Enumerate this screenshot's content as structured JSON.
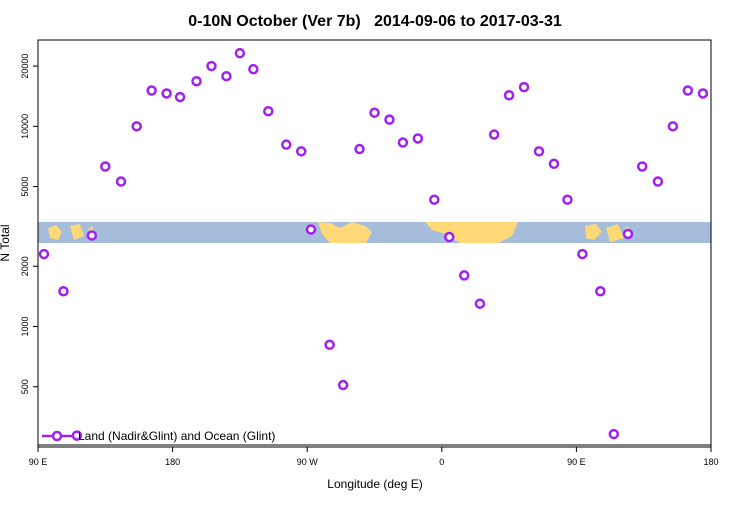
{
  "chart_data": {
    "type": "scatter",
    "title": "0-10N October (Ver 7b)   2014-09-06 to 2017-03-31",
    "x_label": "Longitude (deg E)",
    "y_label": "N Total",
    "x": [
      94,
      107,
      116,
      126,
      135,
      145.5,
      156,
      166,
      176,
      185,
      196,
      206,
      216,
      225,
      234,
      244,
      256,
      266,
      272.5,
      285,
      294,
      305,
      315,
      325,
      334,
      344,
      355,
      365,
      375,
      385.5,
      395,
      405,
      415,
      425,
      435,
      444,
      454,
      466,
      475,
      484.5,
      494,
      504.5,
      514.5,
      524.5,
      534.6
    ],
    "series": [
      {
        "name": "Land (Nadir&Glint) and Ocean (Glint)",
        "color": "#a020f0",
        "values": [
          2300,
          1500,
          285,
          2850,
          6300,
          5300,
          10000,
          15100,
          14600,
          14000,
          16800,
          20000,
          17800,
          23200,
          19300,
          11900,
          8100,
          7500,
          3050,
          810,
          510,
          7700,
          11700,
          10800,
          8300,
          8700,
          4300,
          2800,
          1800,
          1300,
          9100,
          14300,
          15700,
          7500,
          6500,
          4300,
          2300,
          1500,
          290,
          2900,
          6300,
          5300,
          10000,
          15100,
          14600
        ]
      }
    ],
    "xlim": [
      90,
      540
    ],
    "xticks": [
      {
        "value": 90,
        "label": "90 E"
      },
      180,
      {
        "value": 270,
        "label": "90 W"
      },
      {
        "value": 360,
        "label": "0"
      },
      {
        "value": 450,
        "label": "90 E"
      },
      {
        "value": 540,
        "label": "180"
      }
    ],
    "ylim": [
      250,
      27000
    ],
    "yscale": "log",
    "yticks": [
      500,
      1000,
      2000,
      5000,
      10000,
      20000
    ],
    "legend": "bottom-left"
  }
}
